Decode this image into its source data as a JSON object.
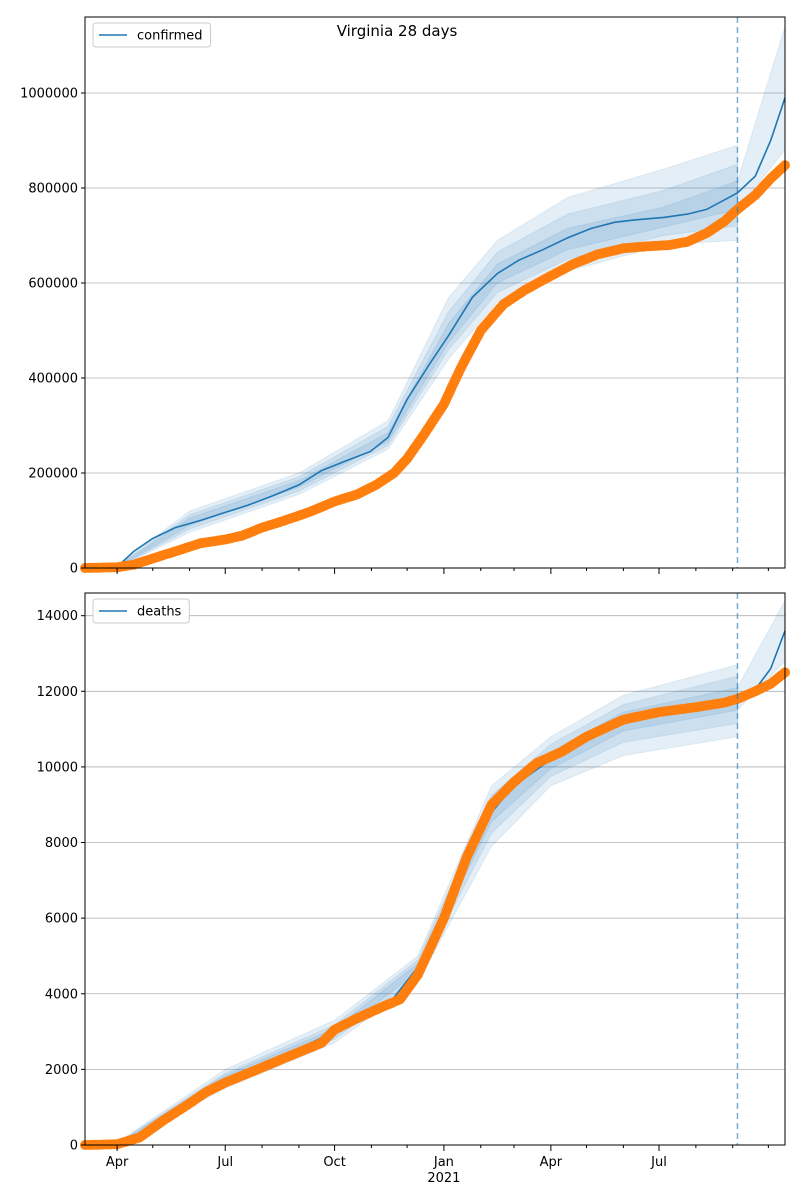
{
  "figure": {
    "title": "Virginia 28 days"
  },
  "chart_data": [
    {
      "type": "line",
      "legend": "confirmed",
      "legend_position": "top-left",
      "grid": "y",
      "ylim": [
        0,
        1160000
      ],
      "yticks": [
        0,
        200000,
        400000,
        600000,
        800000,
        1000000
      ],
      "ytick_labels": [
        "0",
        "200000",
        "400000",
        "600000",
        "800000",
        "1000000"
      ],
      "forecast_start": "2021-09-05",
      "model": [
        [
          "2020-03-05",
          0
        ],
        [
          "2020-04-01",
          2000
        ],
        [
          "2020-04-15",
          35000
        ],
        [
          "2020-05-01",
          62000
        ],
        [
          "2020-05-20",
          85000
        ],
        [
          "2020-06-10",
          100000
        ],
        [
          "2020-07-01",
          117000
        ],
        [
          "2020-07-20",
          132000
        ],
        [
          "2020-08-10",
          152000
        ],
        [
          "2020-09-01",
          175000
        ],
        [
          "2020-09-20",
          205000
        ],
        [
          "2020-10-10",
          225000
        ],
        [
          "2020-10-31",
          245000
        ],
        [
          "2020-11-15",
          275000
        ],
        [
          "2020-12-01",
          355000
        ],
        [
          "2020-12-20",
          430000
        ],
        [
          "2021-01-05",
          490000
        ],
        [
          "2021-01-25",
          570000
        ],
        [
          "2021-02-15",
          620000
        ],
        [
          "2021-03-05",
          648000
        ],
        [
          "2021-03-25",
          670000
        ],
        [
          "2021-04-15",
          695000
        ],
        [
          "2021-05-05",
          715000
        ],
        [
          "2021-05-25",
          728000
        ],
        [
          "2021-06-15",
          734000
        ],
        [
          "2021-07-05",
          738000
        ],
        [
          "2021-07-25",
          745000
        ],
        [
          "2021-08-10",
          755000
        ],
        [
          "2021-08-25",
          775000
        ],
        [
          "2021-09-05",
          790000
        ],
        [
          "2021-09-20",
          825000
        ],
        [
          "2021-10-03",
          900000
        ],
        [
          "2021-10-15",
          990000
        ]
      ],
      "bands": [
        {
          "lower": [
            [
              "2020-04-01",
              0
            ],
            [
              "2020-06-01",
              75000
            ],
            [
              "2020-09-01",
              155000
            ],
            [
              "2020-11-15",
              250000
            ],
            [
              "2021-01-05",
              440000
            ],
            [
              "2021-02-15",
              560000
            ],
            [
              "2021-04-15",
              625000
            ],
            [
              "2021-07-05",
              680000
            ],
            [
              "2021-09-05",
              690000
            ]
          ],
          "upper": [
            [
              "2020-04-01",
              5000
            ],
            [
              "2020-06-01",
              120000
            ],
            [
              "2020-09-01",
              200000
            ],
            [
              "2020-11-15",
              310000
            ],
            [
              "2021-01-05",
              570000
            ],
            [
              "2021-02-15",
              690000
            ],
            [
              "2021-04-15",
              780000
            ],
            [
              "2021-07-05",
              840000
            ],
            [
              "2021-09-05",
              890000
            ]
          ]
        },
        {
          "lower": [
            [
              "2020-04-01",
              0
            ],
            [
              "2020-06-01",
              82000
            ],
            [
              "2020-09-01",
              162000
            ],
            [
              "2020-11-15",
              258000
            ],
            [
              "2021-01-05",
              460000
            ],
            [
              "2021-02-15",
              580000
            ],
            [
              "2021-04-15",
              650000
            ],
            [
              "2021-07-05",
              700000
            ],
            [
              "2021-09-05",
              720000
            ]
          ],
          "upper": [
            [
              "2020-04-01",
              4000
            ],
            [
              "2020-06-01",
              112000
            ],
            [
              "2020-09-01",
              192000
            ],
            [
              "2020-11-15",
              298000
            ],
            [
              "2021-01-05",
              540000
            ],
            [
              "2021-02-15",
              665000
            ],
            [
              "2021-04-15",
              745000
            ],
            [
              "2021-07-05",
              795000
            ],
            [
              "2021-09-05",
              850000
            ]
          ]
        },
        {
          "lower": [
            [
              "2020-04-01",
              0
            ],
            [
              "2020-06-01",
              90000
            ],
            [
              "2020-09-01",
              170000
            ],
            [
              "2020-11-15",
              266000
            ],
            [
              "2021-01-05",
              475000
            ],
            [
              "2021-02-15",
              600000
            ],
            [
              "2021-04-15",
              670000
            ],
            [
              "2021-07-05",
              718000
            ],
            [
              "2021-09-05",
              755000
            ]
          ],
          "upper": [
            [
              "2020-04-01",
              3000
            ],
            [
              "2020-06-01",
              105000
            ],
            [
              "2020-09-01",
              184000
            ],
            [
              "2020-11-15",
              285000
            ],
            [
              "2021-01-05",
              515000
            ],
            [
              "2021-02-15",
              640000
            ],
            [
              "2021-04-15",
              715000
            ],
            [
              "2021-07-05",
              760000
            ],
            [
              "2021-09-05",
              815000
            ]
          ]
        },
        {
          "lower": [
            [
              "2021-09-05",
              755000
            ],
            [
              "2021-10-15",
              880000
            ]
          ],
          "upper": [
            [
              "2021-09-05",
              815000
            ],
            [
              "2021-10-15",
              1140000
            ]
          ]
        }
      ],
      "observed": [
        [
          "2020-03-05",
          0
        ],
        [
          "2020-04-01",
          1500
        ],
        [
          "2020-04-15",
          7000
        ],
        [
          "2020-05-01",
          20000
        ],
        [
          "2020-05-20",
          35000
        ],
        [
          "2020-06-10",
          52000
        ],
        [
          "2020-07-01",
          60000
        ],
        [
          "2020-07-15",
          68000
        ],
        [
          "2020-08-01",
          85000
        ],
        [
          "2020-08-20",
          100000
        ],
        [
          "2020-09-10",
          118000
        ],
        [
          "2020-10-01",
          140000
        ],
        [
          "2020-10-20",
          155000
        ],
        [
          "2020-11-05",
          175000
        ],
        [
          "2020-11-20",
          200000
        ],
        [
          "2020-12-01",
          230000
        ],
        [
          "2020-12-15",
          280000
        ],
        [
          "2021-01-01",
          345000
        ],
        [
          "2021-01-15",
          420000
        ],
        [
          "2021-02-01",
          500000
        ],
        [
          "2021-02-20",
          555000
        ],
        [
          "2021-03-10",
          585000
        ],
        [
          "2021-04-01",
          615000
        ],
        [
          "2021-04-20",
          640000
        ],
        [
          "2021-05-10",
          660000
        ],
        [
          "2021-06-01",
          673000
        ],
        [
          "2021-06-20",
          677000
        ],
        [
          "2021-07-10",
          680000
        ],
        [
          "2021-07-25",
          687000
        ],
        [
          "2021-08-10",
          705000
        ],
        [
          "2021-08-25",
          730000
        ],
        [
          "2021-09-05",
          755000
        ],
        [
          "2021-09-20",
          785000
        ],
        [
          "2021-10-03",
          820000
        ],
        [
          "2021-10-15",
          848000
        ]
      ]
    },
    {
      "type": "line",
      "legend": "deaths",
      "legend_position": "top-left",
      "grid": "y",
      "ylim": [
        0,
        14600
      ],
      "yticks": [
        0,
        2000,
        4000,
        6000,
        8000,
        10000,
        12000,
        14000
      ],
      "ytick_labels": [
        "0",
        "2000",
        "4000",
        "6000",
        "8000",
        "10000",
        "12000",
        "14000"
      ],
      "forecast_start": "2021-09-05",
      "model": [
        [
          "2020-03-05",
          0
        ],
        [
          "2020-04-01",
          20
        ],
        [
          "2020-04-20",
          200
        ],
        [
          "2020-05-10",
          700
        ],
        [
          "2020-06-01",
          1200
        ],
        [
          "2020-07-01",
          1750
        ],
        [
          "2020-08-01",
          2150
        ],
        [
          "2020-09-01",
          2550
        ],
        [
          "2020-10-01",
          3000
        ],
        [
          "2020-11-01",
          3550
        ],
        [
          "2020-11-20",
          3900
        ],
        [
          "2020-12-10",
          4700
        ],
        [
          "2021-01-01",
          6100
        ],
        [
          "2021-01-20",
          7500
        ],
        [
          "2021-02-10",
          8800
        ],
        [
          "2021-03-01",
          9500
        ],
        [
          "2021-04-01",
          10200
        ],
        [
          "2021-05-01",
          10800
        ],
        [
          "2021-06-01",
          11250
        ],
        [
          "2021-07-01",
          11450
        ],
        [
          "2021-08-01",
          11550
        ],
        [
          "2021-09-05",
          11800
        ],
        [
          "2021-09-20",
          12050
        ],
        [
          "2021-10-03",
          12600
        ],
        [
          "2021-10-15",
          13600
        ]
      ],
      "bands": [
        {
          "lower": [
            [
              "2020-04-01",
              0
            ],
            [
              "2020-07-01",
              1500
            ],
            [
              "2020-10-01",
              2700
            ],
            [
              "2020-12-10",
              4300
            ],
            [
              "2021-02-10",
              7900
            ],
            [
              "2021-04-01",
              9500
            ],
            [
              "2021-06-01",
              10300
            ],
            [
              "2021-09-05",
              10800
            ]
          ],
          "upper": [
            [
              "2020-04-01",
              60
            ],
            [
              "2020-07-01",
              2000
            ],
            [
              "2020-10-01",
              3300
            ],
            [
              "2020-12-10",
              5000
            ],
            [
              "2021-02-10",
              9500
            ],
            [
              "2021-04-01",
              10800
            ],
            [
              "2021-06-01",
              11900
            ],
            [
              "2021-09-05",
              12700
            ]
          ]
        },
        {
          "lower": [
            [
              "2020-04-01",
              0
            ],
            [
              "2020-07-01",
              1580
            ],
            [
              "2020-10-01",
              2800
            ],
            [
              "2020-12-10",
              4450
            ],
            [
              "2021-02-10",
              8250
            ],
            [
              "2021-04-01",
              9750
            ],
            [
              "2021-06-01",
              10650
            ],
            [
              "2021-09-05",
              11150
            ]
          ],
          "upper": [
            [
              "2020-04-01",
              45
            ],
            [
              "2020-07-01",
              1900
            ],
            [
              "2020-10-01",
              3180
            ],
            [
              "2020-12-10",
              4900
            ],
            [
              "2021-02-10",
              9250
            ],
            [
              "2021-04-01",
              10600
            ],
            [
              "2021-06-01",
              11650
            ],
            [
              "2021-09-05",
              12400
            ]
          ]
        },
        {
          "lower": [
            [
              "2020-04-01",
              0
            ],
            [
              "2020-07-01",
              1650
            ],
            [
              "2020-10-01",
              2900
            ],
            [
              "2020-12-10",
              4580
            ],
            [
              "2021-02-10",
              8550
            ],
            [
              "2021-04-01",
              9950
            ],
            [
              "2021-06-01",
              10950
            ],
            [
              "2021-09-05",
              11500
            ]
          ],
          "upper": [
            [
              "2020-04-01",
              30
            ],
            [
              "2020-07-01",
              1850
            ],
            [
              "2020-10-01",
              3080
            ],
            [
              "2020-12-10",
              4800
            ],
            [
              "2021-02-10",
              9000
            ],
            [
              "2021-04-01",
              10400
            ],
            [
              "2021-06-01",
              11450
            ],
            [
              "2021-09-05",
              12100
            ]
          ]
        },
        {
          "lower": [
            [
              "2021-09-05",
              11500
            ],
            [
              "2021-10-15",
              12800
            ]
          ],
          "upper": [
            [
              "2021-09-05",
              12100
            ],
            [
              "2021-10-15",
              14400
            ]
          ]
        }
      ],
      "observed": [
        [
          "2020-03-05",
          0
        ],
        [
          "2020-04-01",
          20
        ],
        [
          "2020-04-20",
          200
        ],
        [
          "2020-05-10",
          650
        ],
        [
          "2020-06-01",
          1100
        ],
        [
          "2020-06-15",
          1400
        ],
        [
          "2020-07-01",
          1650
        ],
        [
          "2020-08-01",
          2050
        ],
        [
          "2020-08-20",
          2300
        ],
        [
          "2020-09-20",
          2700
        ],
        [
          "2020-10-01",
          3050
        ],
        [
          "2020-10-20",
          3350
        ],
        [
          "2020-11-10",
          3650
        ],
        [
          "2020-11-25",
          3850
        ],
        [
          "2020-12-10",
          4500
        ],
        [
          "2021-01-01",
          6000
        ],
        [
          "2021-01-20",
          7600
        ],
        [
          "2021-02-10",
          9000
        ],
        [
          "2021-03-01",
          9600
        ],
        [
          "2021-03-20",
          10100
        ],
        [
          "2021-04-10",
          10400
        ],
        [
          "2021-05-01",
          10800
        ],
        [
          "2021-06-01",
          11250
        ],
        [
          "2021-07-01",
          11450
        ],
        [
          "2021-08-01",
          11580
        ],
        [
          "2021-08-25",
          11700
        ],
        [
          "2021-09-05",
          11800
        ],
        [
          "2021-09-20",
          12000
        ],
        [
          "2021-10-03",
          12200
        ],
        [
          "2021-10-15",
          12500
        ]
      ]
    }
  ],
  "x_axis": {
    "range": [
      "2020-03-05",
      "2021-10-15"
    ],
    "major_ticks": [
      {
        "date": "2020-04-01",
        "label": "Apr"
      },
      {
        "date": "2020-07-01",
        "label": "Jul"
      },
      {
        "date": "2020-10-01",
        "label": "Oct"
      },
      {
        "date": "2021-01-01",
        "label": "Jan"
      },
      {
        "date": "2021-04-01",
        "label": "Apr"
      },
      {
        "date": "2021-07-01",
        "label": "Jul"
      }
    ],
    "year_label": "2021",
    "minor_ticks": [
      "2020-05-01",
      "2020-06-01",
      "2020-08-01",
      "2020-09-01",
      "2020-11-01",
      "2020-12-01",
      "2021-02-01",
      "2021-03-01",
      "2021-05-01",
      "2021-06-01",
      "2021-08-01",
      "2021-09-01",
      "2021-10-01"
    ]
  },
  "colors": {
    "model_line": "#1f77b4",
    "band": "#1f77b4",
    "observed": "#ff7f0e",
    "grid": "#b0b0b0",
    "forecast_line": "#1f77b4"
  }
}
